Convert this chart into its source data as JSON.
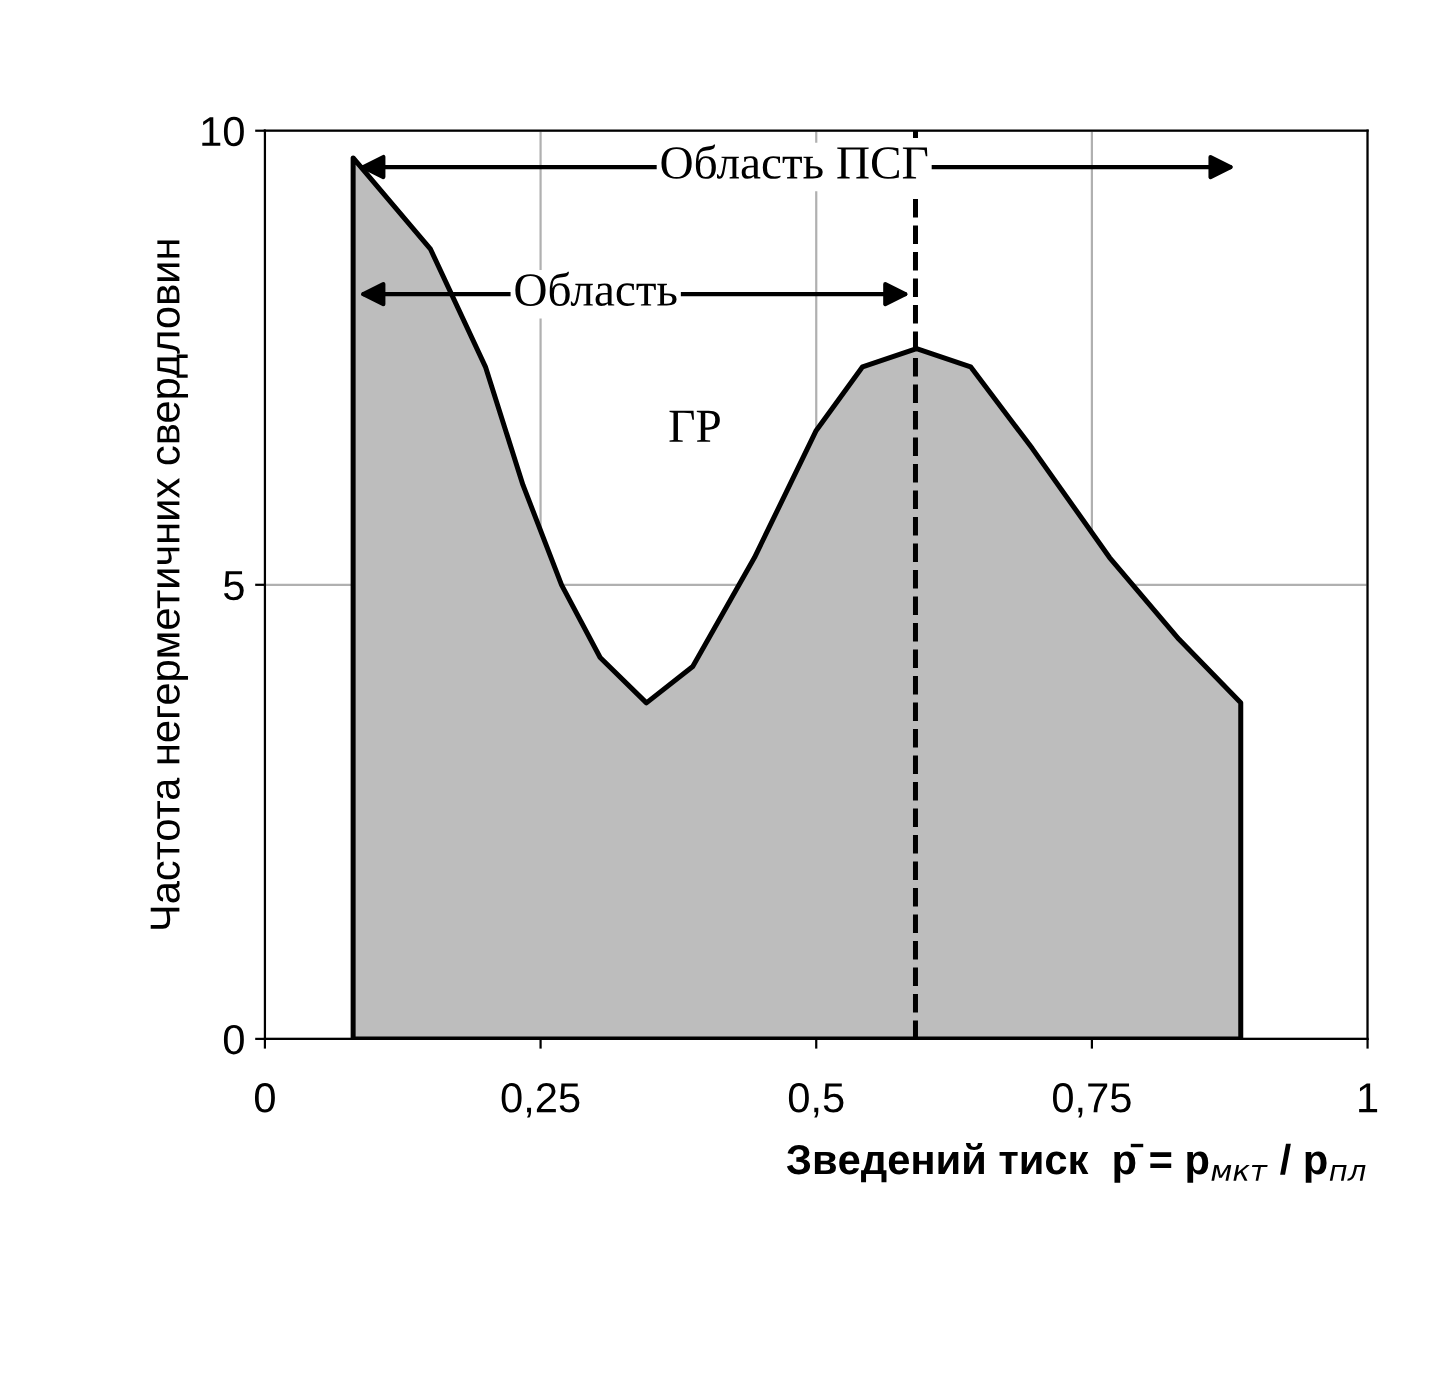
{
  "chart_data": {
    "type": "area",
    "xlabel": "Зведений тиск  p̄ = p$_{мкт}$ / p$_{пл}$",
    "ylabel": "Частота негерметичних свердловин",
    "x": [
      0.08,
      0.15,
      0.2,
      0.234,
      0.269,
      0.304,
      0.346,
      0.388,
      0.444,
      0.5,
      0.542,
      0.591,
      0.64,
      0.696,
      0.766,
      0.829,
      0.885
    ],
    "series": [
      {
        "color": "#bdbdbd",
        "values": [
          9.7,
          8.7,
          7.4,
          6.1,
          5.0,
          4.2,
          3.7,
          4.1,
          5.3,
          6.7,
          7.4,
          7.6,
          7.4,
          6.5,
          5.3,
          4.4,
          3.7
        ]
      }
    ],
    "xlim": [
      0,
      1
    ],
    "ylim": [
      0,
      10
    ],
    "xticks": [
      0,
      {
        "value": 0.25,
        "label": "0,25"
      },
      {
        "value": 0.5,
        "label": "0,5"
      },
      {
        "value": 0.75,
        "label": "0,75"
      },
      1
    ],
    "yticks": [
      0,
      5,
      10
    ],
    "grid": true,
    "ref_lines": [
      {
        "axis": "x",
        "value": 0.59,
        "line_style": "dashed",
        "color": "#000000"
      }
    ],
    "annotations": [
      "Область ПСГ",
      "Область",
      "ГР"
    ]
  }
}
